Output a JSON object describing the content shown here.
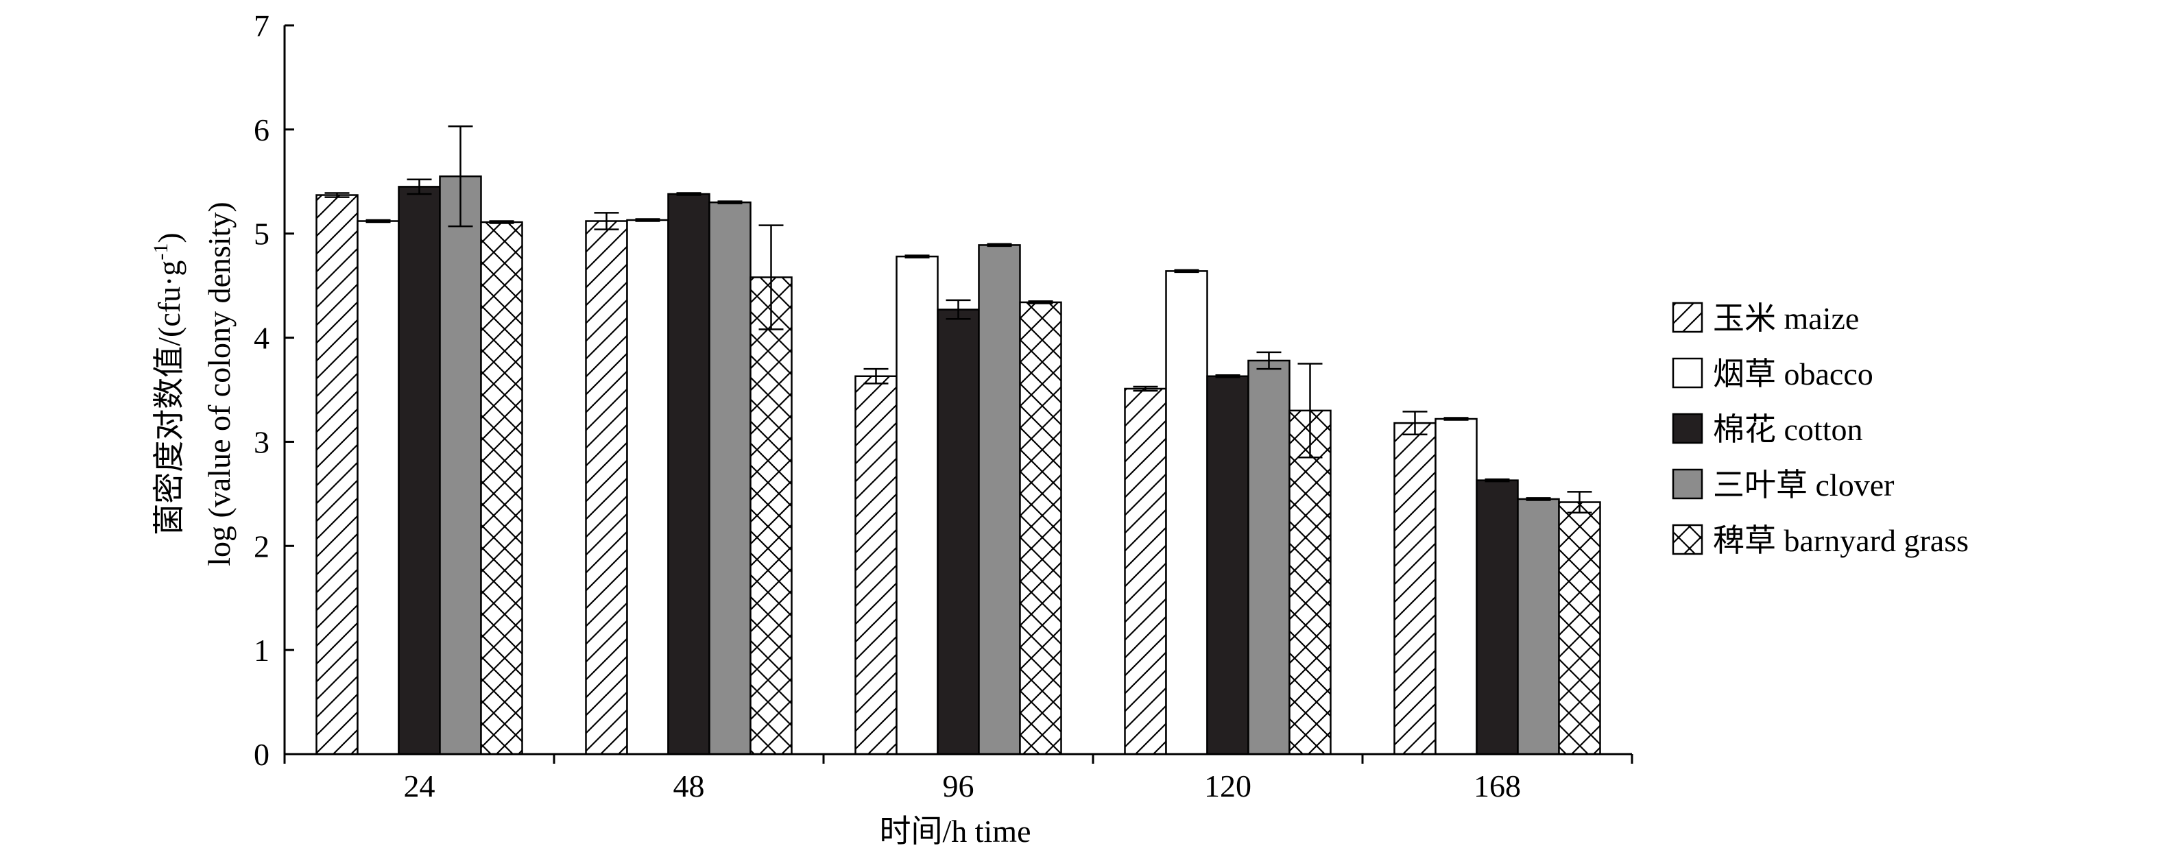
{
  "chart_data": {
    "type": "bar",
    "title": "",
    "xlabel": "时间/h time",
    "ylabel_line1": "菌密度对数值/(cfu·g",
    "ylabel_line1_sup": "-1",
    "ylabel_line1_end": ")",
    "ylabel_line2": "log (value of colony density)",
    "ylim": [
      0,
      7
    ],
    "yticks": [
      "0",
      "1",
      "2",
      "3",
      "4",
      "5",
      "6",
      "7"
    ],
    "categories": [
      "24",
      "48",
      "96",
      "120",
      "168"
    ],
    "grid": false,
    "legend_position": "right",
    "series": [
      {
        "name": "玉米 maize",
        "fill": "hatch",
        "color": "#ffffff",
        "values": [
          5.37,
          5.12,
          3.63,
          3.51,
          3.18
        ],
        "errors": [
          0.02,
          0.08,
          0.07,
          0.02,
          0.11
        ]
      },
      {
        "name": "烟草 obacco",
        "fill": "solid",
        "color": "#ffffff",
        "values": [
          5.12,
          5.13,
          4.78,
          4.64,
          3.22
        ],
        "errors": [
          0.01,
          0.01,
          0.01,
          0.01,
          0.01
        ]
      },
      {
        "name": "棉花 cotton",
        "fill": "solid",
        "color": "#231f20",
        "values": [
          5.45,
          5.38,
          4.27,
          3.63,
          2.63
        ],
        "errors": [
          0.07,
          0.01,
          0.09,
          0.01,
          0.01
        ]
      },
      {
        "name": "三叶草 clover",
        "fill": "solid",
        "color": "#8c8c8c",
        "values": [
          5.55,
          5.3,
          4.89,
          3.78,
          2.45
        ],
        "errors": [
          0.48,
          0.01,
          0.01,
          0.08,
          0.01
        ]
      },
      {
        "name": "稗草 barnyard grass",
        "fill": "crosshatch",
        "color": "#ffffff",
        "values": [
          5.11,
          4.58,
          4.34,
          3.3,
          2.42
        ],
        "errors": [
          0.01,
          0.5,
          0.01,
          0.45,
          0.1
        ]
      }
    ]
  }
}
